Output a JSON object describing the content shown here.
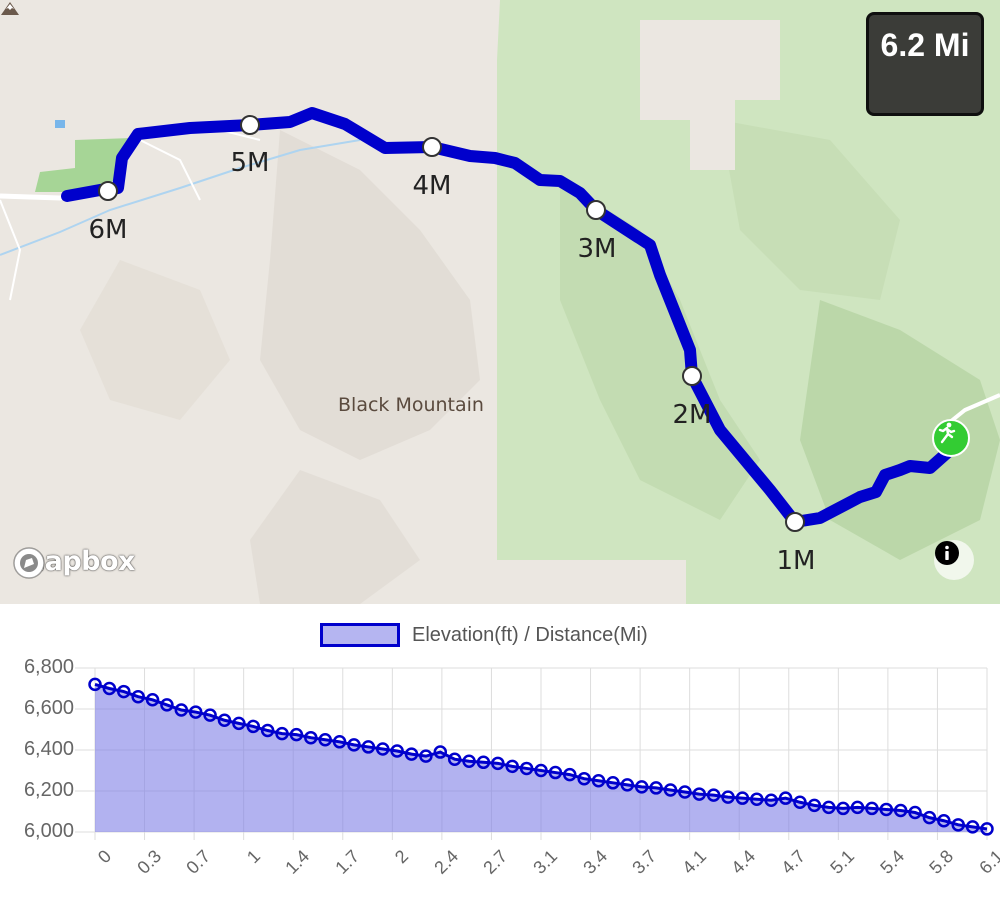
{
  "map": {
    "distance_badge": "6.2 Mi",
    "peak_name": "Black Mountain",
    "attribution": "mapbox",
    "route_color": "#0000cc",
    "forest_color": "#cfe5c0",
    "terrain_color": "#ebe7e1",
    "marker_color": "#33cc33",
    "mile_markers": [
      "1M",
      "2M",
      "3M",
      "4M",
      "5M",
      "6M"
    ]
  },
  "chart_data": {
    "type": "area",
    "title": "",
    "legend": "Elevation(ft) / Distance(Mi)",
    "legend_position": "top",
    "series_color": "#0000cc",
    "fill_color": "#7f7fe6",
    "grid": true,
    "xlabel": "",
    "ylabel": "",
    "ylim": [
      6000,
      6800
    ],
    "y_ticks": [
      "6,000",
      "6,200",
      "6,400",
      "6,600",
      "6,800"
    ],
    "x_ticks": [
      "0",
      "0.3",
      "0.7",
      "1",
      "1.4",
      "1.7",
      "2",
      "2.4",
      "2.7",
      "3.1",
      "3.4",
      "3.7",
      "4.1",
      "4.4",
      "4.7",
      "5.1",
      "5.4",
      "5.8",
      "6.1"
    ],
    "x": [
      0,
      0.1,
      0.2,
      0.3,
      0.4,
      0.5,
      0.6,
      0.7,
      0.8,
      0.9,
      1.0,
      1.1,
      1.2,
      1.3,
      1.4,
      1.5,
      1.6,
      1.7,
      1.8,
      1.9,
      2.0,
      2.1,
      2.2,
      2.3,
      2.4,
      2.5,
      2.6,
      2.7,
      2.8,
      2.9,
      3.0,
      3.1,
      3.2,
      3.3,
      3.4,
      3.5,
      3.6,
      3.7,
      3.8,
      3.9,
      4.0,
      4.1,
      4.2,
      4.3,
      4.4,
      4.5,
      4.6,
      4.7,
      4.8,
      4.9,
      5.0,
      5.1,
      5.2,
      5.3,
      5.4,
      5.5,
      5.6,
      5.7,
      5.8,
      5.9,
      6.0,
      6.1,
      6.2
    ],
    "y": [
      6720,
      6700,
      6685,
      6660,
      6645,
      6620,
      6595,
      6585,
      6570,
      6545,
      6530,
      6515,
      6495,
      6480,
      6475,
      6460,
      6450,
      6440,
      6425,
      6415,
      6405,
      6395,
      6380,
      6370,
      6390,
      6355,
      6345,
      6340,
      6335,
      6320,
      6310,
      6300,
      6290,
      6280,
      6260,
      6250,
      6240,
      6230,
      6220,
      6215,
      6205,
      6195,
      6185,
      6180,
      6170,
      6165,
      6160,
      6155,
      6165,
      6145,
      6130,
      6120,
      6115,
      6120,
      6115,
      6110,
      6105,
      6095,
      6070,
      6055,
      6035,
      6025,
      6015
    ]
  }
}
